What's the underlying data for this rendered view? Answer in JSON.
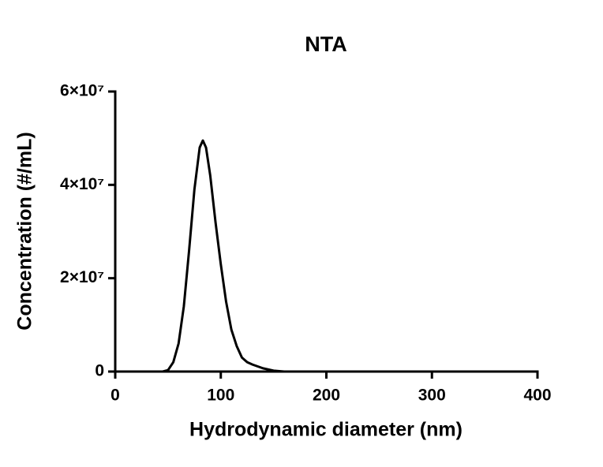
{
  "chart_data": {
    "type": "line",
    "title": "NTA",
    "x_label": "Hydrodynamic diameter (nm)",
    "y_label": "Concentration (#/mL)",
    "x": [
      0,
      45,
      50,
      55,
      60,
      65,
      70,
      75,
      80,
      83,
      86,
      90,
      95,
      100,
      105,
      110,
      115,
      120,
      125,
      130,
      140,
      150,
      160,
      400
    ],
    "series": [
      {
        "color": "#000000",
        "values": [
          0,
          0,
          300000,
          2000000,
          6000000,
          14000000,
          26000000,
          39000000,
          48000000,
          49500000,
          48000000,
          42000000,
          32000000,
          23000000,
          15000000,
          9000000,
          5500000,
          3000000,
          2000000,
          1500000,
          700000,
          200000,
          0,
          0
        ]
      }
    ],
    "xlim": [
      0,
      400
    ],
    "xticks": [
      0,
      100,
      200,
      300,
      400
    ],
    "ylim": [
      0,
      60000000
    ],
    "yticks": [
      0,
      {
        "value": 20000000,
        "label": "2×10⁷"
      },
      {
        "value": 40000000,
        "label": "4×10⁷"
      },
      {
        "value": 60000000,
        "label": "6×10⁷"
      }
    ],
    "grid": false
  }
}
